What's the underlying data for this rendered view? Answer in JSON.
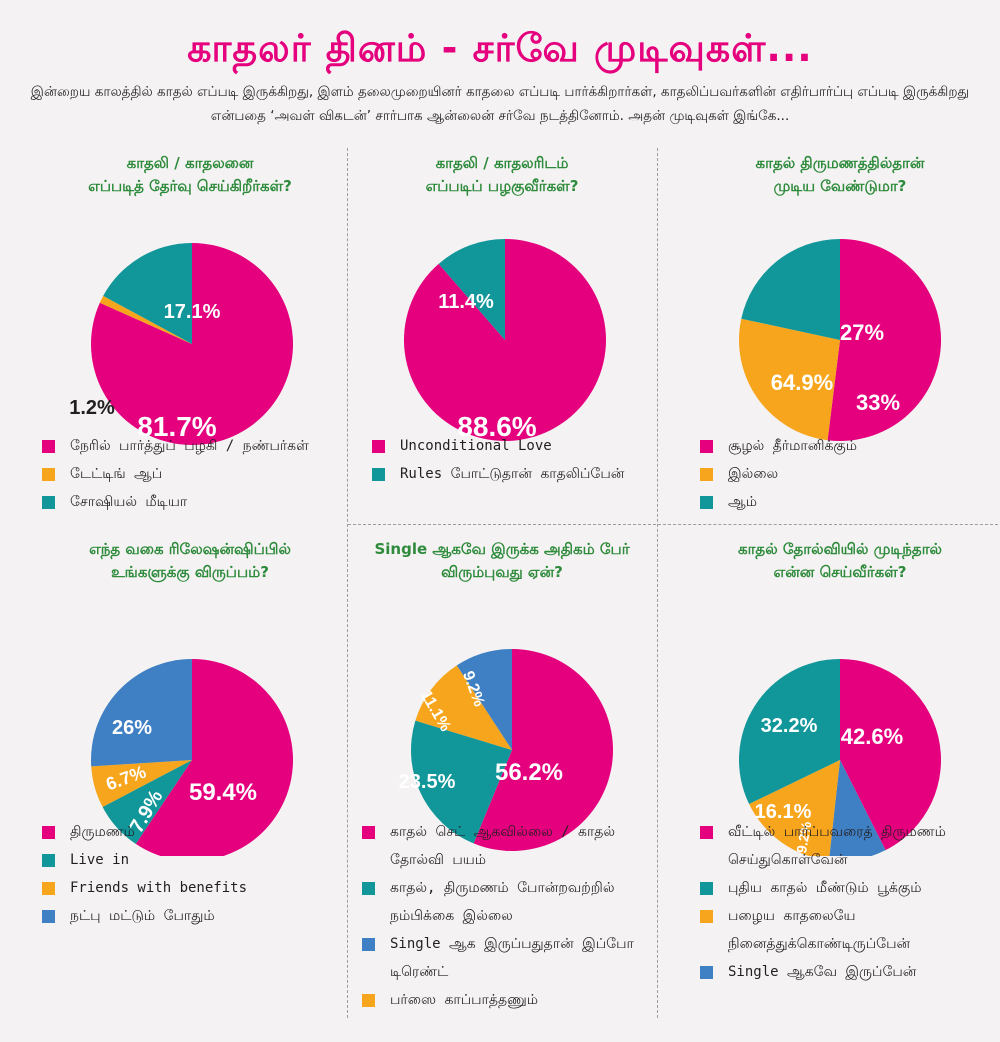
{
  "title": "காதலர் தினம் - சர்வே முடிவுகள்...",
  "intro": "இன்றைய காலத்தில் காதல் எப்படி இருக்கிறது, இளம் தலைமுறையினர் காதலை எப்படி பார்க்கிறார்கள், காதலிப்பவர்களின் எதிர்பார்ப்பு எப்படி இருக்கிறது என்பதை ‘அவள் விகடன்’ சார்பாக ஆன்லைன் சர்வே நடத்தினோம். அதன் முடிவுகள் இங்கே...",
  "colors": {
    "pink": "#e5007e",
    "teal": "#11969a",
    "orange": "#f7a51c",
    "blue": "#3f7fc3",
    "question": "#2e8b3c"
  },
  "chart_data": [
    {
      "type": "pie",
      "title": "காதலி / காதலனை எப்படித் தேர்வு செய்கிறீர்கள்?",
      "title_lines": [
        "காதலி / காதலனை",
        "எப்படித் தேர்வு செய்கிறீர்கள்?"
      ],
      "slices": [
        {
          "label": "நேரில் பார்த்துப் பழகி / நண்பர்கள்",
          "value": 81.7,
          "display": "81.7%",
          "color": "#e5007e"
        },
        {
          "label": "டேட்டிங் ஆப்",
          "value": 1.2,
          "display": "1.2%",
          "color": "#f7a51c"
        },
        {
          "label": "சோஷியல் மீடியா",
          "value": 17.1,
          "display": "17.1%",
          "color": "#11969a"
        }
      ],
      "legend": [
        {
          "lines": [
            "நேரில் பார்த்துப் பழகி / நண்பர்கள்"
          ],
          "color": "#e5007e"
        },
        {
          "lines": [
            "டேட்டிங் ஆப்"
          ],
          "color": "#f7a51c"
        },
        {
          "lines": [
            "சோஷியல் மீடியா"
          ],
          "color": "#11969a"
        }
      ]
    },
    {
      "type": "pie",
      "title": "காதலி / காதலரிடம் எப்படிப் பழகுவீர்கள்?",
      "title_lines": [
        "காதலி / காதலரிடம்",
        "எப்படிப் பழகுவீர்கள்?"
      ],
      "slices": [
        {
          "label": "Unconditional Love",
          "value": 88.6,
          "display": "88.6%",
          "color": "#e5007e"
        },
        {
          "label": "Rules போட்டுதான் காதலிப்பேன்",
          "value": 11.4,
          "display": "11.4%",
          "color": "#11969a"
        }
      ],
      "legend": [
        {
          "lines": [
            "Unconditional Love"
          ],
          "color": "#e5007e"
        },
        {
          "lines": [
            "Rules போட்டுதான் காதலிப்பேன்"
          ],
          "color": "#11969a"
        }
      ]
    },
    {
      "type": "pie",
      "title": "காதல் திருமணத்தில்தான் முடிய வேண்டுமா?",
      "title_lines": [
        "காதல் திருமணத்தில்தான்",
        "முடிய வேண்டுமா?"
      ],
      "slices": [
        {
          "label": "சூழல் தீர்மானிக்கும்",
          "value": 64.9,
          "display": "64.9%",
          "color": "#e5007e"
        },
        {
          "label": "இல்லை",
          "value": 33,
          "display": "33%",
          "color": "#f7a51c"
        },
        {
          "label": "ஆம்",
          "value": 27,
          "display": "27%",
          "color": "#11969a"
        }
      ],
      "legend": [
        {
          "lines": [
            "சூழல் தீர்மானிக்கும்"
          ],
          "color": "#e5007e"
        },
        {
          "lines": [
            "இல்லை"
          ],
          "color": "#f7a51c"
        },
        {
          "lines": [
            "ஆம்"
          ],
          "color": "#11969a"
        }
      ]
    },
    {
      "type": "pie",
      "title": "எந்த வகை ரிலேஷன்ஷிப்பில் உங்களுக்கு விருப்பம்?",
      "title_lines": [
        "எந்த வகை ரிலேஷன்ஷிப்பில்",
        "உங்களுக்கு விருப்பம்?"
      ],
      "slices": [
        {
          "label": "திருமணம்",
          "value": 59.4,
          "display": "59.4%",
          "color": "#e5007e"
        },
        {
          "label": "Live in",
          "value": 7.9,
          "display": "7.9%",
          "color": "#11969a"
        },
        {
          "label": "Friends with benefits",
          "value": 6.7,
          "display": "6.7%",
          "color": "#f7a51c"
        },
        {
          "label": "நட்பு மட்டும் போதும்",
          "value": 26,
          "display": "26%",
          "color": "#3f7fc3"
        }
      ],
      "legend": [
        {
          "lines": [
            "திருமணம்"
          ],
          "color": "#e5007e"
        },
        {
          "lines": [
            "Live in"
          ],
          "color": "#11969a"
        },
        {
          "lines": [
            "Friends with benefits"
          ],
          "color": "#f7a51c"
        },
        {
          "lines": [
            "நட்பு மட்டும் போதும்"
          ],
          "color": "#3f7fc3"
        }
      ]
    },
    {
      "type": "pie",
      "title": "Single ஆகவே இருக்க அதிகம் பேர் விரும்புவது ஏன்?",
      "title_lines": [
        "Single ஆகவே இருக்க அதிகம் பேர்",
        "விரும்புவது ஏன்?"
      ],
      "slices": [
        {
          "label": "காதல் செட் ஆகவில்லை / காதல் தோல்வி பயம்",
          "value": 56.2,
          "display": "56.2%",
          "color": "#e5007e"
        },
        {
          "label": "காதல், திருமணம் போன்றவற்றில் நம்பிக்கை இல்லை",
          "value": 23.5,
          "display": "23.5%",
          "color": "#11969a"
        },
        {
          "label": "பர்ஸை காப்பாத்தணும்",
          "value": 11.1,
          "display": "11.1%",
          "color": "#f7a51c"
        },
        {
          "label": "Single ஆக இருப்பதுதான் இப்போ டிரெண்ட்",
          "value": 9.2,
          "display": "9.2%",
          "color": "#3f7fc3"
        }
      ],
      "legend": [
        {
          "lines": [
            "காதல் செட் ஆகவில்லை / காதல்",
            "தோல்வி பயம்"
          ],
          "color": "#e5007e"
        },
        {
          "lines": [
            "காதல், திருமணம் போன்றவற்றில்",
            "நம்பிக்கை இல்லை"
          ],
          "color": "#11969a"
        },
        {
          "lines": [
            "Single ஆக இருப்பதுதான் இப்போ",
            "டிரெண்ட்"
          ],
          "color": "#3f7fc3"
        },
        {
          "lines": [
            "பர்ஸை காப்பாத்தணும்"
          ],
          "color": "#f7a51c"
        }
      ]
    },
    {
      "type": "pie",
      "title": "காதல் தோல்வியில் முடிந்தால் என்ன செய்வீர்கள்?",
      "title_lines": [
        "காதல் தோல்வியில் முடிந்தால்",
        "என்ன செய்வீர்கள்?"
      ],
      "slices": [
        {
          "label": "வீட்டில் பார்ப்பவரைத் திருமணம் செய்துகொள்வேன்",
          "value": 42.6,
          "display": "42.6%",
          "color": "#e5007e"
        },
        {
          "label": "Single ஆகவே இருப்பேன்",
          "value": 9.2,
          "display": "9.2%",
          "color": "#3f7fc3"
        },
        {
          "label": "பழைய காதலையே நினைத்துக்கொண்டிருப்பேன்",
          "value": 16.1,
          "display": "16.1%",
          "color": "#f7a51c"
        },
        {
          "label": "புதிய காதல் மீண்டும் பூக்கும்",
          "value": 32.2,
          "display": "32.2%",
          "color": "#11969a"
        }
      ],
      "legend": [
        {
          "lines": [
            "வீட்டில் பார்ப்பவரைத் திருமணம்",
            "செய்துகொள்வேன்"
          ],
          "color": "#e5007e"
        },
        {
          "lines": [
            "புதிய காதல் மீண்டும் பூக்கும்"
          ],
          "color": "#11969a"
        },
        {
          "lines": [
            "பழைய காதலையே",
            "நினைத்துக்கொண்டிருப்பேன்"
          ],
          "color": "#f7a51c"
        },
        {
          "lines": [
            "Single ஆகவே இருப்பேன்"
          ],
          "color": "#3f7fc3"
        }
      ]
    }
  ]
}
